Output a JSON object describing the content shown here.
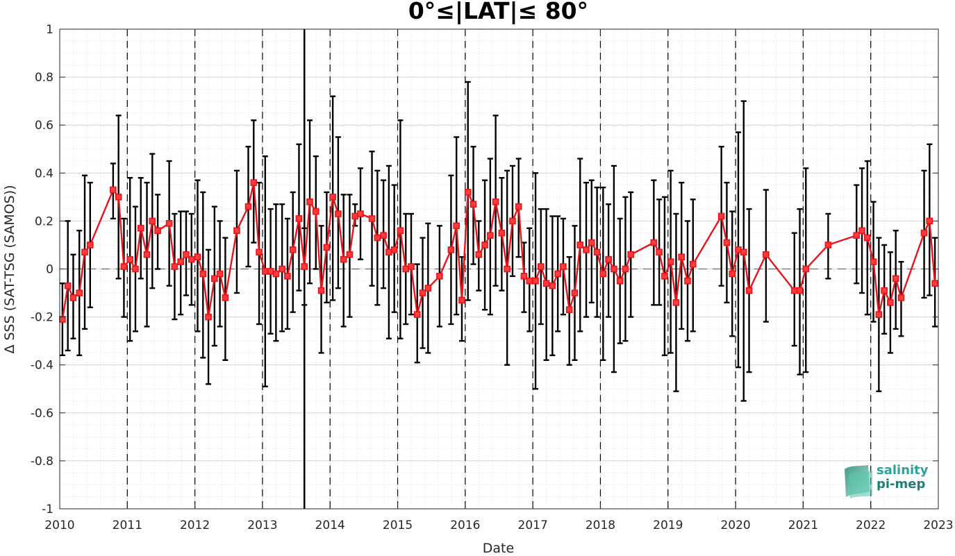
{
  "chart_data": {
    "type": "line",
    "title": "0°≤|LAT|≤ 80°",
    "xlabel": "Date",
    "ylabel": "Δ SSS (SAT-TSG (SAMOS))",
    "xlim": [
      2010,
      2023
    ],
    "ylim": [
      -1,
      1
    ],
    "xticks": [
      "2010",
      "2011",
      "2012",
      "2013",
      "2014",
      "2015",
      "2016",
      "2017",
      "2018",
      "2019",
      "2020",
      "2021",
      "2022",
      "2023"
    ],
    "yticks": [
      "1",
      "0.8",
      "0.6",
      "0.4",
      "0.2",
      "0",
      "-0.2",
      "-0.4",
      "-0.6",
      "-0.8",
      "-1"
    ],
    "grid": true,
    "zero_line": 0,
    "year_separators": [
      2011,
      2012,
      2013,
      2014,
      2015,
      2016,
      2017,
      2018,
      2019,
      2020,
      2021,
      2022
    ],
    "event_line": 2013.62,
    "colors": {
      "series": "#e8141b",
      "marker_fill": "#ff3b3b",
      "errorbar": "#000000",
      "grid": "#c8c8c8",
      "zero_line": "#555555"
    },
    "series": [
      {
        "points": [
          {
            "x": 2010.04,
            "y": -0.21,
            "lo": -0.36,
            "hi": -0.06
          },
          {
            "x": 2010.12,
            "y": -0.07,
            "lo": -0.34,
            "hi": 0.2
          },
          {
            "x": 2010.2,
            "y": -0.12,
            "lo": -0.29,
            "hi": 0.06
          },
          {
            "x": 2010.29,
            "y": -0.1,
            "lo": -0.36,
            "hi": 0.16
          },
          {
            "x": 2010.37,
            "y": 0.07,
            "lo": -0.25,
            "hi": 0.39
          },
          {
            "x": 2010.45,
            "y": 0.1,
            "lo": -0.16,
            "hi": 0.36
          },
          {
            "x": 2010.79,
            "y": 0.33,
            "lo": 0.21,
            "hi": 0.44
          },
          {
            "x": 2010.87,
            "y": 0.3,
            "lo": -0.04,
            "hi": 0.64
          },
          {
            "x": 2010.95,
            "y": 0.01,
            "lo": -0.2,
            "hi": 0.21
          },
          {
            "x": 2011.04,
            "y": 0.04,
            "lo": -0.3,
            "hi": 0.38
          },
          {
            "x": 2011.12,
            "y": 0.0,
            "lo": -0.26,
            "hi": 0.26
          },
          {
            "x": 2011.2,
            "y": 0.17,
            "lo": -0.04,
            "hi": 0.38
          },
          {
            "x": 2011.29,
            "y": 0.06,
            "lo": -0.24,
            "hi": 0.36
          },
          {
            "x": 2011.37,
            "y": 0.2,
            "lo": -0.08,
            "hi": 0.48
          },
          {
            "x": 2011.45,
            "y": 0.16,
            "lo": 0.0,
            "hi": 0.31
          },
          {
            "x": 2011.62,
            "y": 0.19,
            "lo": -0.07,
            "hi": 0.45
          },
          {
            "x": 2011.7,
            "y": 0.01,
            "lo": -0.21,
            "hi": 0.23
          },
          {
            "x": 2011.79,
            "y": 0.03,
            "lo": -0.19,
            "hi": 0.24
          },
          {
            "x": 2011.87,
            "y": 0.06,
            "lo": -0.11,
            "hi": 0.24
          },
          {
            "x": 2011.95,
            "y": 0.04,
            "lo": -0.15,
            "hi": 0.23
          },
          {
            "x": 2012.04,
            "y": 0.05,
            "lo": -0.26,
            "hi": 0.37
          },
          {
            "x": 2012.12,
            "y": -0.02,
            "lo": -0.37,
            "hi": 0.32
          },
          {
            "x": 2012.2,
            "y": -0.2,
            "lo": -0.48,
            "hi": 0.08
          },
          {
            "x": 2012.29,
            "y": -0.04,
            "lo": -0.32,
            "hi": 0.26
          },
          {
            "x": 2012.37,
            "y": -0.02,
            "lo": -0.24,
            "hi": 0.2
          },
          {
            "x": 2012.45,
            "y": -0.12,
            "lo": -0.38,
            "hi": 0.13
          },
          {
            "x": 2012.62,
            "y": 0.16,
            "lo": -0.1,
            "hi": 0.41
          },
          {
            "x": 2012.79,
            "y": 0.26,
            "lo": 0.01,
            "hi": 0.51
          },
          {
            "x": 2012.87,
            "y": 0.36,
            "lo": 0.11,
            "hi": 0.62
          },
          {
            "x": 2012.95,
            "y": 0.07,
            "lo": -0.23,
            "hi": 0.36
          },
          {
            "x": 2013.04,
            "y": -0.01,
            "lo": -0.49,
            "hi": 0.47
          },
          {
            "x": 2013.12,
            "y": -0.01,
            "lo": -0.27,
            "hi": 0.25
          },
          {
            "x": 2013.2,
            "y": -0.02,
            "lo": -0.3,
            "hi": 0.27
          },
          {
            "x": 2013.29,
            "y": 0.0,
            "lo": -0.26,
            "hi": 0.27
          },
          {
            "x": 2013.37,
            "y": -0.03,
            "lo": -0.25,
            "hi": 0.21
          },
          {
            "x": 2013.45,
            "y": 0.08,
            "lo": -0.18,
            "hi": 0.32
          },
          {
            "x": 2013.54,
            "y": 0.21,
            "lo": -0.09,
            "hi": 0.52
          },
          {
            "x": 2013.62,
            "y": 0.01,
            "lo": -0.15,
            "hi": 0.17
          },
          {
            "x": 2013.7,
            "y": 0.28,
            "lo": -0.06,
            "hi": 0.62
          },
          {
            "x": 2013.79,
            "y": 0.24,
            "lo": 0.0,
            "hi": 0.47
          },
          {
            "x": 2013.87,
            "y": -0.09,
            "lo": -0.35,
            "hi": 0.18
          },
          {
            "x": 2013.95,
            "y": 0.09,
            "lo": -0.14,
            "hi": 0.32
          },
          {
            "x": 2014.04,
            "y": 0.3,
            "lo": -0.13,
            "hi": 0.72
          },
          {
            "x": 2014.12,
            "y": 0.23,
            "lo": -0.08,
            "hi": 0.55
          },
          {
            "x": 2014.2,
            "y": 0.04,
            "lo": -0.24,
            "hi": 0.31
          },
          {
            "x": 2014.29,
            "y": 0.06,
            "lo": -0.2,
            "hi": 0.31
          },
          {
            "x": 2014.37,
            "y": 0.22,
            "lo": 0.18,
            "hi": 0.27
          },
          {
            "x": 2014.45,
            "y": 0.23,
            "lo": 0.04,
            "hi": 0.42
          },
          {
            "x": 2014.62,
            "y": 0.21,
            "lo": -0.07,
            "hi": 0.49
          },
          {
            "x": 2014.7,
            "y": 0.13,
            "lo": -0.15,
            "hi": 0.41
          },
          {
            "x": 2014.79,
            "y": 0.14,
            "lo": -0.08,
            "hi": 0.37
          },
          {
            "x": 2014.87,
            "y": 0.07,
            "lo": -0.29,
            "hi": 0.43
          },
          {
            "x": 2014.95,
            "y": 0.08,
            "lo": -0.18,
            "hi": 0.35
          },
          {
            "x": 2015.04,
            "y": 0.16,
            "lo": -0.29,
            "hi": 0.62
          },
          {
            "x": 2015.12,
            "y": 0.0,
            "lo": -0.23,
            "hi": 0.23
          },
          {
            "x": 2015.2,
            "y": 0.01,
            "lo": -0.19,
            "hi": 0.23
          },
          {
            "x": 2015.29,
            "y": -0.19,
            "lo": -0.39,
            "hi": 0.02
          },
          {
            "x": 2015.37,
            "y": -0.1,
            "lo": -0.33,
            "hi": 0.13
          },
          {
            "x": 2015.45,
            "y": -0.08,
            "lo": -0.35,
            "hi": 0.19
          },
          {
            "x": 2015.62,
            "y": -0.03,
            "lo": -0.24,
            "hi": 0.18
          },
          {
            "x": 2015.79,
            "y": 0.08,
            "lo": -0.23,
            "hi": 0.39
          },
          {
            "x": 2015.87,
            "y": 0.18,
            "lo": -0.19,
            "hi": 0.55
          },
          {
            "x": 2015.95,
            "y": -0.13,
            "lo": -0.3,
            "hi": 0.05
          },
          {
            "x": 2016.04,
            "y": 0.32,
            "lo": -0.13,
            "hi": 0.78
          },
          {
            "x": 2016.12,
            "y": 0.27,
            "lo": 0.02,
            "hi": 0.51
          },
          {
            "x": 2016.2,
            "y": 0.06,
            "lo": -0.09,
            "hi": 0.2
          },
          {
            "x": 2016.29,
            "y": 0.1,
            "lo": -0.17,
            "hi": 0.37
          },
          {
            "x": 2016.37,
            "y": 0.14,
            "lo": -0.19,
            "hi": 0.46
          },
          {
            "x": 2016.45,
            "y": 0.28,
            "lo": -0.07,
            "hi": 0.64
          },
          {
            "x": 2016.54,
            "y": 0.15,
            "lo": -0.09,
            "hi": 0.38
          },
          {
            "x": 2016.62,
            "y": 0.0,
            "lo": -0.4,
            "hi": 0.41
          },
          {
            "x": 2016.7,
            "y": 0.2,
            "lo": -0.03,
            "hi": 0.43
          },
          {
            "x": 2016.79,
            "y": 0.26,
            "lo": 0.05,
            "hi": 0.46
          },
          {
            "x": 2016.87,
            "y": -0.03,
            "lo": -0.18,
            "hi": 0.11
          },
          {
            "x": 2016.95,
            "y": -0.05,
            "lo": -0.26,
            "hi": 0.17
          },
          {
            "x": 2017.04,
            "y": -0.05,
            "lo": -0.5,
            "hi": 0.4
          },
          {
            "x": 2017.12,
            "y": 0.01,
            "lo": -0.23,
            "hi": 0.25
          },
          {
            "x": 2017.2,
            "y": -0.06,
            "lo": -0.38,
            "hi": 0.25
          },
          {
            "x": 2017.29,
            "y": -0.07,
            "lo": -0.36,
            "hi": 0.22
          },
          {
            "x": 2017.37,
            "y": -0.02,
            "lo": -0.26,
            "hi": 0.22
          },
          {
            "x": 2017.45,
            "y": 0.01,
            "lo": -0.19,
            "hi": 0.21
          },
          {
            "x": 2017.54,
            "y": -0.17,
            "lo": -0.4,
            "hi": 0.05
          },
          {
            "x": 2017.62,
            "y": -0.1,
            "lo": -0.38,
            "hi": 0.18
          },
          {
            "x": 2017.7,
            "y": 0.1,
            "lo": -0.26,
            "hi": 0.46
          },
          {
            "x": 2017.79,
            "y": 0.08,
            "lo": -0.2,
            "hi": 0.36
          },
          {
            "x": 2017.87,
            "y": 0.11,
            "lo": -0.14,
            "hi": 0.37
          },
          {
            "x": 2017.95,
            "y": 0.07,
            "lo": -0.2,
            "hi": 0.34
          },
          {
            "x": 2018.04,
            "y": -0.02,
            "lo": -0.38,
            "hi": 0.34
          },
          {
            "x": 2018.12,
            "y": 0.04,
            "lo": -0.2,
            "hi": 0.27
          },
          {
            "x": 2018.2,
            "y": 0.0,
            "lo": -0.43,
            "hi": 0.43
          },
          {
            "x": 2018.29,
            "y": -0.05,
            "lo": -0.31,
            "hi": 0.21
          },
          {
            "x": 2018.37,
            "y": 0.0,
            "lo": -0.3,
            "hi": 0.3
          },
          {
            "x": 2018.45,
            "y": 0.06,
            "lo": -0.2,
            "hi": 0.32
          },
          {
            "x": 2018.79,
            "y": 0.11,
            "lo": -0.15,
            "hi": 0.37
          },
          {
            "x": 2018.87,
            "y": 0.07,
            "lo": -0.15,
            "hi": 0.29
          },
          {
            "x": 2018.95,
            "y": -0.03,
            "lo": -0.36,
            "hi": 0.3
          },
          {
            "x": 2019.04,
            "y": 0.03,
            "lo": -0.35,
            "hi": 0.41
          },
          {
            "x": 2019.12,
            "y": -0.14,
            "lo": -0.51,
            "hi": 0.23
          },
          {
            "x": 2019.2,
            "y": 0.05,
            "lo": -0.25,
            "hi": 0.36
          },
          {
            "x": 2019.29,
            "y": -0.05,
            "lo": -0.3,
            "hi": 0.2
          },
          {
            "x": 2019.37,
            "y": 0.02,
            "lo": -0.26,
            "hi": 0.29
          },
          {
            "x": 2019.79,
            "y": 0.22,
            "lo": -0.07,
            "hi": 0.51
          },
          {
            "x": 2019.87,
            "y": 0.11,
            "lo": -0.14,
            "hi": 0.36
          },
          {
            "x": 2019.95,
            "y": -0.02,
            "lo": -0.28,
            "hi": 0.24
          },
          {
            "x": 2020.04,
            "y": 0.08,
            "lo": -0.41,
            "hi": 0.57
          },
          {
            "x": 2020.12,
            "y": 0.07,
            "lo": -0.55,
            "hi": 0.7
          },
          {
            "x": 2020.2,
            "y": -0.09,
            "lo": -0.43,
            "hi": 0.25
          },
          {
            "x": 2020.45,
            "y": 0.06,
            "lo": -0.22,
            "hi": 0.33
          },
          {
            "x": 2020.87,
            "y": -0.09,
            "lo": -0.32,
            "hi": 0.15
          },
          {
            "x": 2020.95,
            "y": -0.09,
            "lo": -0.44,
            "hi": 0.25
          },
          {
            "x": 2021.04,
            "y": 0.0,
            "lo": -0.43,
            "hi": 0.42
          },
          {
            "x": 2021.37,
            "y": 0.1,
            "lo": -0.04,
            "hi": 0.23
          },
          {
            "x": 2021.79,
            "y": 0.14,
            "lo": -0.06,
            "hi": 0.35
          },
          {
            "x": 2021.87,
            "y": 0.16,
            "lo": -0.1,
            "hi": 0.42
          },
          {
            "x": 2021.95,
            "y": 0.13,
            "lo": -0.19,
            "hi": 0.45
          },
          {
            "x": 2022.04,
            "y": 0.03,
            "lo": -0.22,
            "hi": 0.28
          },
          {
            "x": 2022.12,
            "y": -0.19,
            "lo": -0.51,
            "hi": 0.13
          },
          {
            "x": 2022.2,
            "y": -0.09,
            "lo": -0.27,
            "hi": 0.1
          },
          {
            "x": 2022.29,
            "y": -0.14,
            "lo": -0.35,
            "hi": 0.07
          },
          {
            "x": 2022.37,
            "y": -0.04,
            "lo": -0.25,
            "hi": 0.16
          },
          {
            "x": 2022.45,
            "y": -0.12,
            "lo": -0.28,
            "hi": 0.03
          },
          {
            "x": 2022.79,
            "y": 0.15,
            "lo": -0.12,
            "hi": 0.41
          },
          {
            "x": 2022.87,
            "y": 0.2,
            "lo": -0.11,
            "hi": 0.52
          },
          {
            "x": 2022.95,
            "y": -0.06,
            "lo": -0.24,
            "hi": 0.13
          }
        ]
      }
    ]
  },
  "logo": {
    "line1": "salinity",
    "line2": "pi-mep"
  }
}
